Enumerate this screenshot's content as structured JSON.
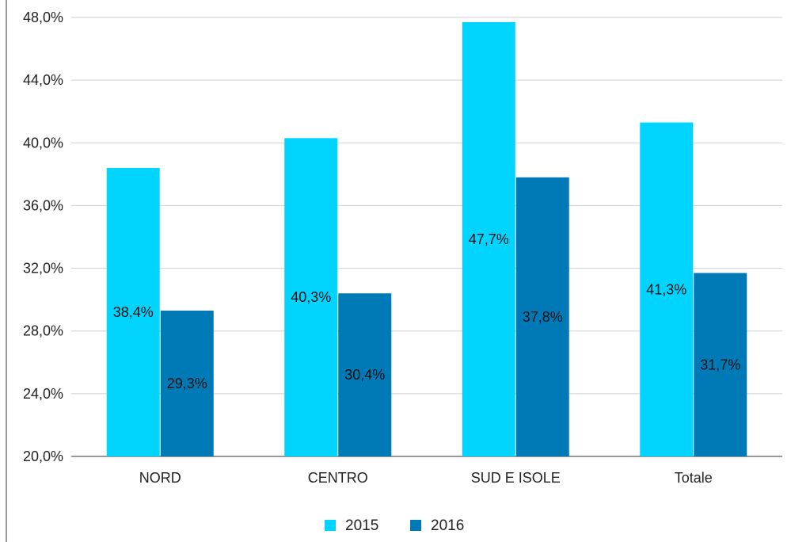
{
  "chart_data": {
    "type": "bar",
    "categories": [
      "NORD",
      "CENTRO",
      "SUD E ISOLE",
      "Totale"
    ],
    "series": [
      {
        "name": "2015",
        "values": [
          38.4,
          40.3,
          47.7,
          41.3
        ],
        "labels": [
          "38,4%",
          "40,3%",
          "47,7%",
          "41,3%"
        ],
        "color": "#00D4FF"
      },
      {
        "name": "2016",
        "values": [
          29.3,
          30.4,
          37.8,
          31.7
        ],
        "labels": [
          "29,3%",
          "30,4%",
          "37,8%",
          "31,7%"
        ],
        "color": "#0079B7"
      }
    ],
    "ylim": [
      20,
      48
    ],
    "y_ticks": [
      20,
      24,
      28,
      32,
      36,
      40,
      44,
      48
    ],
    "y_tick_labels": [
      "20,0%",
      "24,0%",
      "28,0%",
      "32,0%",
      "36,0%",
      "40,0%",
      "44,0%",
      "48,0%"
    ],
    "grid": true,
    "legend_position": "bottom-center",
    "title": "",
    "xlabel": "",
    "ylabel": ""
  }
}
